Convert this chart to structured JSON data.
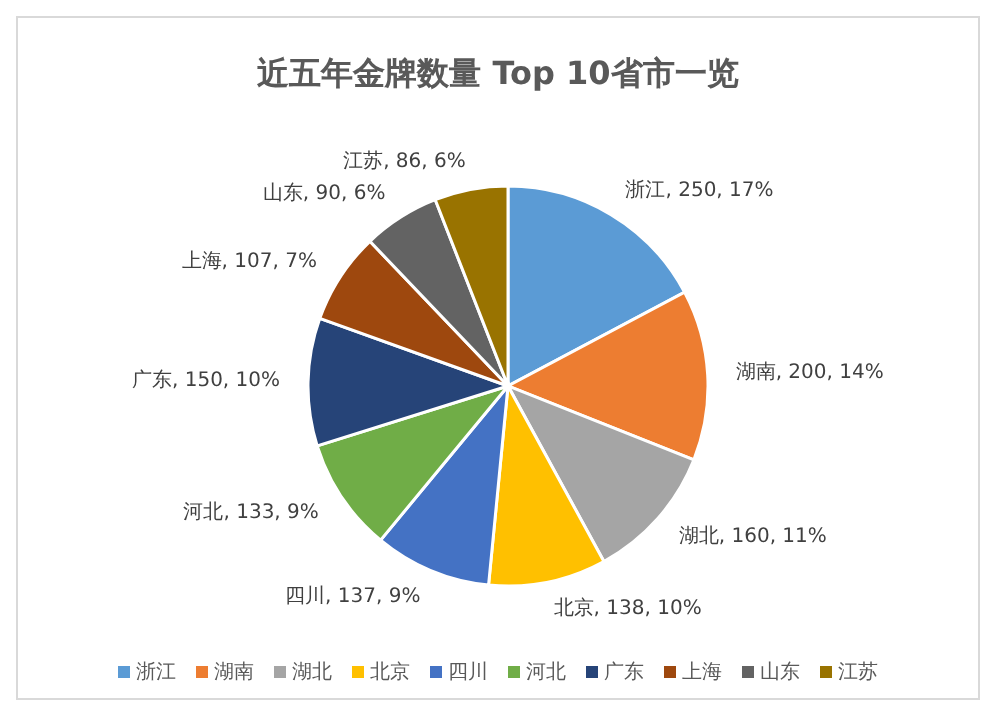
{
  "chart_data": {
    "type": "pie",
    "title": "近五年金牌数量 Top 10省市一览",
    "categories": [
      "浙江",
      "湖南",
      "湖北",
      "北京",
      "四川",
      "河北",
      "广东",
      "上海",
      "山东",
      "江苏"
    ],
    "values": [
      250,
      200,
      160,
      138,
      137,
      133,
      150,
      107,
      90,
      86
    ],
    "value_labels": [
      ", 250, 17%",
      ", 200, 14%",
      ", 160, 11%",
      ", 138, 10%",
      ", 137, 9%",
      ", 133, 9%",
      ", 150, 10%",
      ", 107, 7%",
      ", 90, 6%",
      ", 86, 6%"
    ],
    "colors": [
      "#5b9bd5",
      "#ed7d31",
      "#a5a5a5",
      "#ffc000",
      "#4472c4",
      "#70ad47",
      "#264478",
      "#9e480e",
      "#636363",
      "#997300"
    ],
    "legend": "bottom"
  }
}
